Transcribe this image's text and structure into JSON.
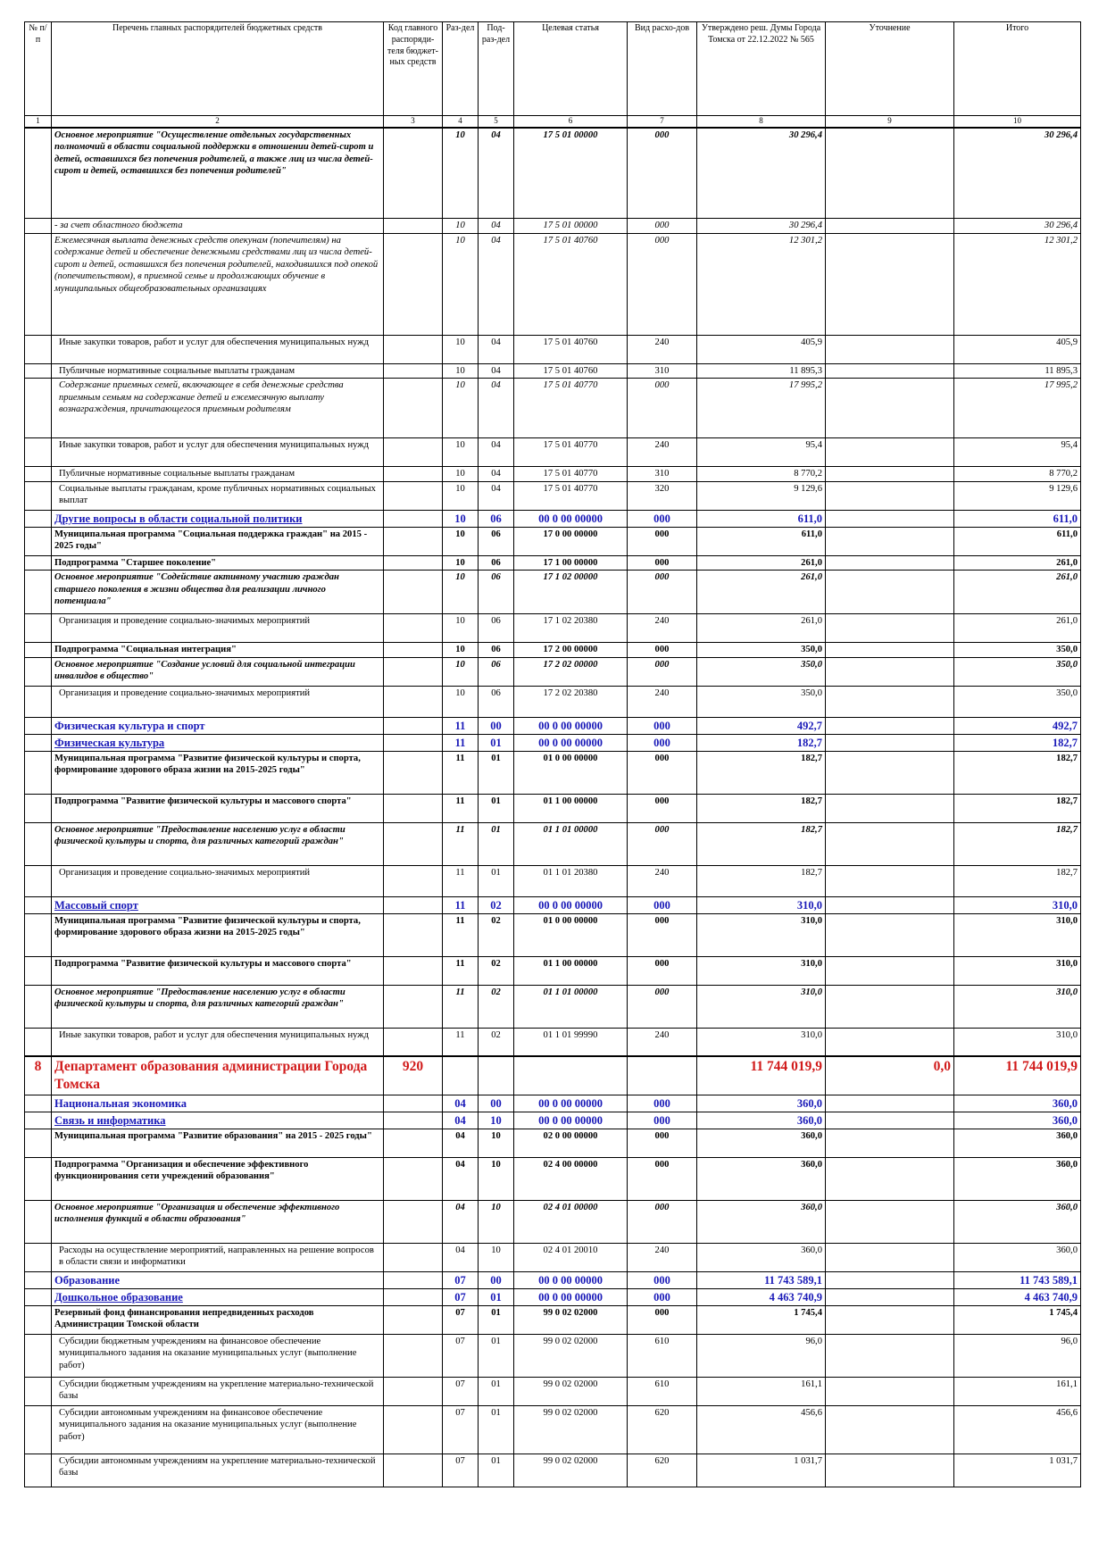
{
  "headers": [
    "№ п/п",
    "Перечень главных распорядителей бюджетных средств",
    "Код главного распоряди-теля бюджет-ных средств",
    "Раз-дел",
    "Под-раз-дел",
    "Целевая статья",
    "Вид расхо-дов",
    "Утверждено реш. Думы Города Томска от 22.12.2022 № 565",
    "Уточнение",
    "Итого"
  ],
  "column_numbers": [
    "1",
    "2",
    "3",
    "4",
    "5",
    "6",
    "7",
    "8",
    "9",
    "10"
  ],
  "rows": [
    {
      "style": "bi",
      "h": 102,
      "cells": [
        "",
        "Основное мероприятие \"Осуществление отдельных государственных полномочий в области социальной поддержки в отношении детей-сирот и детей, оставшихся без попечения родителей, а также лиц из числа детей-сирот и детей, оставшихся без попечения родителей\"",
        "",
        "10",
        "04",
        "17 5 01 00000",
        "000",
        "30 296,4",
        "",
        "30 296,4"
      ]
    },
    {
      "style": "i",
      "h": 16,
      "cells": [
        "",
        "- за счет областного бюджета",
        "",
        "10",
        "04",
        "17 5 01 00000",
        "000",
        "30 296,4",
        "",
        "30 296,4"
      ]
    },
    {
      "style": "i",
      "h": 114,
      "cells": [
        "",
        "Ежемесячная выплата денежных средств опекунам (попечителям) на содержание детей и обеспечение денежными средствами лиц из числа детей-сирот и детей, оставшихся без попечения родителей, находившихся под опекой (попечительством), в приемной семье и продолжающих обучение в муниципальных общеобразовательных организациях",
        "",
        "10",
        "04",
        "17 5 01 40760",
        "000",
        "12 301,2",
        "",
        "12 301,2"
      ]
    },
    {
      "style": "n",
      "h": 32,
      "ind": true,
      "cells": [
        "",
        "Иные закупки товаров, работ и услуг для обеспечения муниципальных нужд",
        "",
        "10",
        "04",
        "17 5 01 40760",
        "240",
        "405,9",
        "",
        "405,9"
      ]
    },
    {
      "style": "n",
      "h": 16,
      "ind": true,
      "cells": [
        "",
        "Публичные нормативные социальные выплаты гражданам",
        "",
        "10",
        "04",
        "17 5 01 40760",
        "310",
        "11 895,3",
        "",
        "11 895,3"
      ]
    },
    {
      "style": "i",
      "h": 67,
      "ind": true,
      "cells": [
        "",
        "Содержание приемных семей, включающее в себя денежные средства приемным семьям на содержание детей и ежемесячную выплату вознаграждения, причитающегося приемным родителям",
        "",
        "10",
        "04",
        "17 5 01 40770",
        "000",
        "17 995,2",
        "",
        "17 995,2"
      ]
    },
    {
      "style": "n",
      "h": 32,
      "ind": true,
      "cells": [
        "",
        "Иные закупки товаров, работ и услуг для обеспечения муниципальных нужд",
        "",
        "10",
        "04",
        "17 5 01 40770",
        "240",
        "95,4",
        "",
        "95,4"
      ]
    },
    {
      "style": "n",
      "h": 16,
      "ind": true,
      "cells": [
        "",
        "Публичные нормативные социальные выплаты гражданам",
        "",
        "10",
        "04",
        "17 5 01 40770",
        "310",
        "8 770,2",
        "",
        "8 770,2"
      ]
    },
    {
      "style": "n",
      "h": 32,
      "ind": true,
      "cells": [
        "",
        "Социальные выплаты гражданам, кроме публичных нормативных социальных выплат",
        "",
        "10",
        "04",
        "17 5 01 40770",
        "320",
        "9 129,6",
        "",
        "9 129,6"
      ]
    },
    {
      "style": "blue",
      "h": 17,
      "cells": [
        "",
        "Другие вопросы в области социальной политики",
        "",
        "10",
        "06",
        "00 0 00 00000",
        "000",
        "611,0",
        "",
        "611,0"
      ]
    },
    {
      "style": "b",
      "h": 32,
      "cells": [
        "",
        "Муниципальная программа \"Социальная поддержка граждан\" на 2015 - 2025 годы\"",
        "",
        "10",
        "06",
        "17 0 00 00000",
        "000",
        "611,0",
        "",
        "611,0"
      ]
    },
    {
      "style": "b",
      "h": 16,
      "cells": [
        "",
        "Подпрограмма \"Старшее поколение\"",
        "",
        "10",
        "06",
        "17 1 00 00000",
        "000",
        "261,0",
        "",
        "261,0"
      ]
    },
    {
      "style": "bi",
      "h": 49,
      "cells": [
        "",
        "Основное мероприятие \"Содействие активному участию граждан старшего поколения в жизни общества для реализации личного потенциала\"",
        "",
        "10",
        "06",
        "17 1 02 00000",
        "000",
        "261,0",
        "",
        "261,0"
      ]
    },
    {
      "style": "n",
      "h": 32,
      "ind": true,
      "cells": [
        "",
        "Организация и проведение социально-значимых мероприятий",
        "",
        "10",
        "06",
        "17 1 02 20380",
        "240",
        "261,0",
        "",
        "261,0"
      ]
    },
    {
      "style": "b",
      "h": 16,
      "cells": [
        "",
        "Подпрограмма \"Социальная интеграция\"",
        "",
        "10",
        "06",
        "17 2 00 00000",
        "000",
        "350,0",
        "",
        "350,0"
      ]
    },
    {
      "style": "bi",
      "h": 32,
      "cells": [
        "",
        "Основное мероприятие \"Создание условий для социальной интеграции инвалидов в общество\"",
        "",
        "10",
        "06",
        "17 2 02 00000",
        "000",
        "350,0",
        "",
        "350,0"
      ]
    },
    {
      "style": "n",
      "h": 35,
      "ind": true,
      "cells": [
        "",
        "Организация и проведение социально-значимых мероприятий",
        "",
        "10",
        "06",
        "17 2 02 20380",
        "240",
        "350,0",
        "",
        "350,0"
      ]
    },
    {
      "style": "blue",
      "h": 17,
      "nou": true,
      "cells": [
        "",
        "Физическая культура и спорт",
        "",
        "11",
        "00",
        "00 0 00 00000",
        "000",
        "492,7",
        "",
        "492,7"
      ]
    },
    {
      "style": "blue",
      "h": 17,
      "cells": [
        "",
        "Физическая культура",
        "",
        "11",
        "01",
        "00 0 00 00000",
        "000",
        "182,7",
        "",
        "182,7"
      ]
    },
    {
      "style": "b",
      "h": 48,
      "cells": [
        "",
        "Муниципальная программа \"Развитие физической культуры и спорта, формирование здорового образа жизни на 2015-2025 годы\"",
        "",
        "11",
        "01",
        "01 0 00 00000",
        "000",
        "182,7",
        "",
        "182,7"
      ]
    },
    {
      "style": "b",
      "h": 32,
      "cells": [
        "",
        "Подпрограмма \"Развитие физической культуры и массового спорта\"",
        "",
        "11",
        "01",
        "01 1 00 00000",
        "000",
        "182,7",
        "",
        "182,7"
      ]
    },
    {
      "style": "bi",
      "h": 48,
      "cells": [
        "",
        "Основное мероприятие \"Предоставление населению услуг в области физической культуры и спорта, для различных категорий граждан\"",
        "",
        "11",
        "01",
        "01 1 01 00000",
        "000",
        "182,7",
        "",
        "182,7"
      ]
    },
    {
      "style": "n",
      "h": 35,
      "ind": true,
      "cells": [
        "",
        "Организация и проведение социально-значимых мероприятий",
        "",
        "11",
        "01",
        "01 1 01 20380",
        "240",
        "182,7",
        "",
        "182,7"
      ]
    },
    {
      "style": "blue",
      "h": 17,
      "cells": [
        "",
        "Массовый спорт",
        "",
        "11",
        "02",
        "00 0 00 00000",
        "000",
        "310,0",
        "",
        "310,0"
      ]
    },
    {
      "style": "b",
      "h": 48,
      "cells": [
        "",
        "Муниципальная программа \"Развитие физической культуры и спорта, формирование здорового образа жизни на 2015-2025 годы\"",
        "",
        "11",
        "02",
        "01 0 00 00000",
        "000",
        "310,0",
        "",
        "310,0"
      ]
    },
    {
      "style": "b",
      "h": 32,
      "cells": [
        "",
        "Подпрограмма \"Развитие физической культуры и массового спорта\"",
        "",
        "11",
        "02",
        "01 1 00 00000",
        "000",
        "310,0",
        "",
        "310,0"
      ]
    },
    {
      "style": "bi",
      "h": 48,
      "cells": [
        "",
        "Основное мероприятие \"Предоставление населению услуг в области физической культуры и спорта, для различных категорий граждан\"",
        "",
        "11",
        "02",
        "01 1 01 00000",
        "000",
        "310,0",
        "",
        "310,0"
      ]
    },
    {
      "style": "n",
      "h": 32,
      "ind": true,
      "cells": [
        "",
        "Иные закупки товаров, работ и услуг для обеспечения муниципальных нужд",
        "",
        "11",
        "02",
        "01 1 01 99990",
        "240",
        "310,0",
        "",
        "310,0"
      ]
    },
    {
      "style": "red",
      "h": 42,
      "dept": true,
      "cells": [
        "8",
        "Департамент образования администрации Города Томска",
        "920",
        "",
        "",
        "",
        "",
        "11 744 019,9",
        "0,0",
        "11 744 019,9"
      ]
    },
    {
      "style": "blue",
      "h": 17,
      "nou": true,
      "cells": [
        "",
        "Национальная экономика",
        "",
        "04",
        "00",
        "00 0 00 00000",
        "000",
        "360,0",
        "",
        "360,0"
      ]
    },
    {
      "style": "blue",
      "h": 17,
      "cells": [
        "",
        "Связь и информатика",
        "",
        "04",
        "10",
        "00 0 00 00000",
        "000",
        "360,0",
        "",
        "360,0"
      ]
    },
    {
      "style": "b",
      "h": 32,
      "cells": [
        "",
        "Муниципальная программа \"Развитие образования\" на 2015 - 2025 годы\"",
        "",
        "04",
        "10",
        "02 0 00 00000",
        "000",
        "360,0",
        "",
        "360,0"
      ]
    },
    {
      "style": "b",
      "h": 48,
      "cells": [
        "",
        "Подпрограмма \"Организация и обеспечение эффективного функционирования сети учреждений образования\"",
        "",
        "04",
        "10",
        "02 4 00 00000",
        "000",
        "360,0",
        "",
        "360,0"
      ]
    },
    {
      "style": "bi",
      "h": 48,
      "cells": [
        "",
        "Основное мероприятие \"Организация и обеспечение эффективного исполнения функций в области образования\"",
        "",
        "04",
        "10",
        "02 4 01 00000",
        "000",
        "360,0",
        "",
        "360,0"
      ]
    },
    {
      "style": "n",
      "h": 32,
      "ind": true,
      "cells": [
        "",
        "Расходы на осуществление мероприятий, направленных на решение вопросов в области связи и информатики",
        "",
        "04",
        "10",
        "02 4 01 20010",
        "240",
        "360,0",
        "",
        "360,0"
      ]
    },
    {
      "style": "blue",
      "h": 17,
      "nou": true,
      "cells": [
        "",
        "Образование",
        "",
        "07",
        "00",
        "00 0 00 00000",
        "000",
        "11 743 589,1",
        "",
        "11 743 589,1"
      ]
    },
    {
      "style": "blue",
      "h": 17,
      "cells": [
        "",
        "Дошкольное образование",
        "",
        "07",
        "01",
        "00 0 00 00000",
        "000",
        "4 463 740,9",
        "",
        "4 463 740,9"
      ]
    },
    {
      "style": "b",
      "h": 32,
      "cells": [
        "",
        "Резервный фонд финансирования непредвиденных расходов Администрации Томской области",
        "",
        "07",
        "01",
        "99 0 02 02000",
        "000",
        "1 745,4",
        "",
        "1 745,4"
      ]
    },
    {
      "style": "n",
      "h": 48,
      "ind": true,
      "cells": [
        "",
        "Субсидии бюджетным учреждениям на финансовое обеспечение муниципального задания на оказание муниципальных услуг (выполнение работ)",
        "",
        "07",
        "01",
        "99 0 02 02000",
        "610",
        "96,0",
        "",
        "96,0"
      ]
    },
    {
      "style": "n",
      "h": 32,
      "ind": true,
      "cells": [
        "",
        "Субсидии бюджетным учреждениям на укрепление материально-технической базы",
        "",
        "07",
        "01",
        "99 0 02 02000",
        "610",
        "161,1",
        "",
        "161,1"
      ]
    },
    {
      "style": "n",
      "h": 54,
      "ind": true,
      "cells": [
        "",
        "Субсидии автономным учреждениям на финансовое обеспечение муниципального задания на оказание муниципальных услуг (выполнение работ)",
        "",
        "07",
        "01",
        "99 0 02 02000",
        "620",
        "456,6",
        "",
        "456,6"
      ]
    },
    {
      "style": "n",
      "h": 37,
      "ind": true,
      "cells": [
        "",
        "Субсидии автономным учреждениям на укрепление материально-технической базы",
        "",
        "07",
        "01",
        "99 0 02 02000",
        "620",
        "1 031,7",
        "",
        "1 031,7"
      ]
    }
  ]
}
